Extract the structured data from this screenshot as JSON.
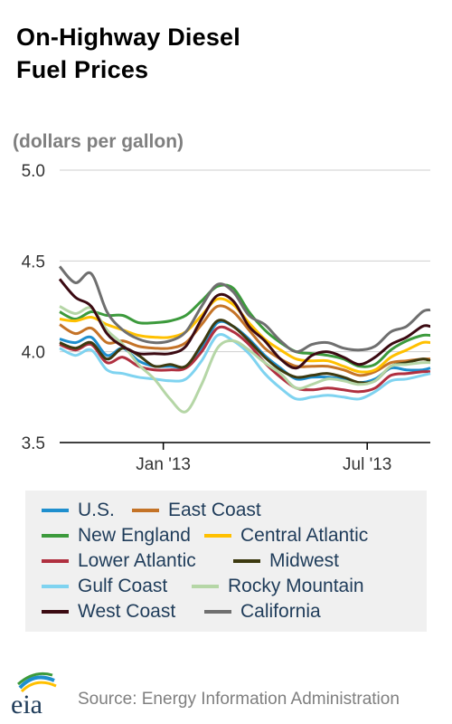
{
  "title_lines": [
    "On-Highway Diesel",
    "Fuel Prices"
  ],
  "source": "Source: Energy Information Administration",
  "logo_text": "eia",
  "chart_data": {
    "type": "line",
    "title": "On-Highway Diesel Fuel Prices",
    "ylabel": "(dollars per gallon)",
    "xlabel": "",
    "ylim": [
      3.5,
      5.0
    ],
    "yticks": [
      3.5,
      4.0,
      4.5,
      5.0
    ],
    "ytick_labels": [
      "3.5",
      "4.0",
      "4.5",
      "5.0"
    ],
    "xlim": [
      "2012-10-01",
      "2013-08-26"
    ],
    "xticks": [
      {
        "date": "2013-01-01",
        "label": "Jan '13"
      },
      {
        "date": "2013-07-01",
        "label": "Jul '13"
      }
    ],
    "grid": "horizontal",
    "legend_position": "bottom",
    "series": [
      {
        "name": "U.S.",
        "color": "#1f8fce",
        "points": [
          [
            "2012-10-01",
            4.07
          ],
          [
            "2012-10-15",
            4.05
          ],
          [
            "2012-10-29",
            4.08
          ],
          [
            "2012-11-12",
            3.98
          ],
          [
            "2012-11-26",
            4.02
          ],
          [
            "2012-12-10",
            3.95
          ],
          [
            "2012-12-24",
            3.92
          ],
          [
            "2013-01-07",
            3.92
          ],
          [
            "2013-01-21",
            3.92
          ],
          [
            "2013-02-04",
            4.02
          ],
          [
            "2013-02-18",
            4.16
          ],
          [
            "2013-03-04",
            4.14
          ],
          [
            "2013-03-18",
            4.07
          ],
          [
            "2013-04-01",
            3.98
          ],
          [
            "2013-04-15",
            3.91
          ],
          [
            "2013-04-29",
            3.85
          ],
          [
            "2013-05-13",
            3.86
          ],
          [
            "2013-05-27",
            3.86
          ],
          [
            "2013-06-10",
            3.85
          ],
          [
            "2013-06-24",
            3.83
          ],
          [
            "2013-07-08",
            3.85
          ],
          [
            "2013-07-22",
            3.91
          ],
          [
            "2013-08-05",
            3.9
          ],
          [
            "2013-08-19",
            3.9
          ],
          [
            "2013-08-26",
            3.91
          ]
        ]
      },
      {
        "name": "East Coast",
        "color": "#c47327",
        "points": [
          [
            "2012-10-01",
            4.15
          ],
          [
            "2012-10-15",
            4.1
          ],
          [
            "2012-10-29",
            4.13
          ],
          [
            "2012-11-12",
            4.05
          ],
          [
            "2012-11-26",
            4.06
          ],
          [
            "2012-12-10",
            4.03
          ],
          [
            "2012-12-24",
            4.02
          ],
          [
            "2013-01-07",
            4.02
          ],
          [
            "2013-01-21",
            4.05
          ],
          [
            "2013-02-04",
            4.15
          ],
          [
            "2013-02-18",
            4.25
          ],
          [
            "2013-03-04",
            4.22
          ],
          [
            "2013-03-18",
            4.12
          ],
          [
            "2013-04-01",
            4.02
          ],
          [
            "2013-04-15",
            3.96
          ],
          [
            "2013-04-29",
            3.92
          ],
          [
            "2013-05-13",
            3.92
          ],
          [
            "2013-05-27",
            3.92
          ],
          [
            "2013-06-10",
            3.9
          ],
          [
            "2013-06-24",
            3.87
          ],
          [
            "2013-07-08",
            3.89
          ],
          [
            "2013-07-22",
            3.94
          ],
          [
            "2013-08-05",
            3.95
          ],
          [
            "2013-08-19",
            3.96
          ],
          [
            "2013-08-26",
            3.96
          ]
        ]
      },
      {
        "name": "New England",
        "color": "#3c9a3c",
        "points": [
          [
            "2012-10-01",
            4.22
          ],
          [
            "2012-10-15",
            4.18
          ],
          [
            "2012-10-29",
            4.22
          ],
          [
            "2012-11-12",
            4.2
          ],
          [
            "2012-11-26",
            4.2
          ],
          [
            "2012-12-10",
            4.16
          ],
          [
            "2012-12-24",
            4.16
          ],
          [
            "2013-01-07",
            4.17
          ],
          [
            "2013-01-21",
            4.2
          ],
          [
            "2013-02-04",
            4.28
          ],
          [
            "2013-02-18",
            4.36
          ],
          [
            "2013-03-04",
            4.35
          ],
          [
            "2013-03-18",
            4.22
          ],
          [
            "2013-04-01",
            4.12
          ],
          [
            "2013-04-15",
            4.05
          ],
          [
            "2013-04-29",
            4.0
          ],
          [
            "2013-05-13",
            3.99
          ],
          [
            "2013-05-27",
            3.98
          ],
          [
            "2013-06-10",
            3.96
          ],
          [
            "2013-06-24",
            3.92
          ],
          [
            "2013-07-08",
            3.93
          ],
          [
            "2013-07-22",
            4.01
          ],
          [
            "2013-08-05",
            4.06
          ],
          [
            "2013-08-19",
            4.09
          ],
          [
            "2013-08-26",
            4.09
          ]
        ]
      },
      {
        "name": "Central Atlantic",
        "color": "#ffc000",
        "points": [
          [
            "2012-10-01",
            4.18
          ],
          [
            "2012-10-15",
            4.17
          ],
          [
            "2012-10-29",
            4.19
          ],
          [
            "2012-11-12",
            4.15
          ],
          [
            "2012-11-26",
            4.12
          ],
          [
            "2012-12-10",
            4.09
          ],
          [
            "2012-12-24",
            4.08
          ],
          [
            "2013-01-07",
            4.08
          ],
          [
            "2013-01-21",
            4.11
          ],
          [
            "2013-02-04",
            4.2
          ],
          [
            "2013-02-18",
            4.29
          ],
          [
            "2013-03-04",
            4.26
          ],
          [
            "2013-03-18",
            4.16
          ],
          [
            "2013-04-01",
            4.07
          ],
          [
            "2013-04-15",
            4.01
          ],
          [
            "2013-04-29",
            3.96
          ],
          [
            "2013-05-13",
            3.95
          ],
          [
            "2013-05-27",
            3.95
          ],
          [
            "2013-06-10",
            3.92
          ],
          [
            "2013-06-24",
            3.89
          ],
          [
            "2013-07-08",
            3.9
          ],
          [
            "2013-07-22",
            3.97
          ],
          [
            "2013-08-05",
            4.01
          ],
          [
            "2013-08-19",
            4.05
          ],
          [
            "2013-08-26",
            4.05
          ]
        ]
      },
      {
        "name": "Lower Atlantic",
        "color": "#b03040",
        "points": [
          [
            "2012-10-01",
            4.04
          ],
          [
            "2012-10-15",
            4.01
          ],
          [
            "2012-10-29",
            4.04
          ],
          [
            "2012-11-12",
            3.94
          ],
          [
            "2012-11-26",
            3.97
          ],
          [
            "2012-12-10",
            3.92
          ],
          [
            "2012-12-24",
            3.9
          ],
          [
            "2013-01-07",
            3.9
          ],
          [
            "2013-01-21",
            3.91
          ],
          [
            "2013-02-04",
            4.0
          ],
          [
            "2013-02-18",
            4.13
          ],
          [
            "2013-03-04",
            4.11
          ],
          [
            "2013-03-18",
            4.04
          ],
          [
            "2013-04-01",
            3.94
          ],
          [
            "2013-04-15",
            3.86
          ],
          [
            "2013-04-29",
            3.8
          ],
          [
            "2013-05-13",
            3.79
          ],
          [
            "2013-05-27",
            3.8
          ],
          [
            "2013-06-10",
            3.79
          ],
          [
            "2013-06-24",
            3.78
          ],
          [
            "2013-07-08",
            3.8
          ],
          [
            "2013-07-22",
            3.87
          ],
          [
            "2013-08-05",
            3.88
          ],
          [
            "2013-08-19",
            3.89
          ],
          [
            "2013-08-26",
            3.89
          ]
        ]
      },
      {
        "name": "Midwest",
        "color": "#3d3a10",
        "points": [
          [
            "2012-10-01",
            4.05
          ],
          [
            "2012-10-15",
            4.02
          ],
          [
            "2012-10-29",
            4.05
          ],
          [
            "2012-11-12",
            3.96
          ],
          [
            "2012-11-26",
            4.02
          ],
          [
            "2012-12-10",
            3.98
          ],
          [
            "2012-12-24",
            3.92
          ],
          [
            "2013-01-07",
            3.93
          ],
          [
            "2013-01-21",
            3.92
          ],
          [
            "2013-02-04",
            4.04
          ],
          [
            "2013-02-18",
            4.17
          ],
          [
            "2013-03-04",
            4.14
          ],
          [
            "2013-03-18",
            4.06
          ],
          [
            "2013-04-01",
            3.97
          ],
          [
            "2013-04-15",
            3.9
          ],
          [
            "2013-04-29",
            3.86
          ],
          [
            "2013-05-13",
            3.87
          ],
          [
            "2013-05-27",
            3.88
          ],
          [
            "2013-06-10",
            3.86
          ],
          [
            "2013-06-24",
            3.83
          ],
          [
            "2013-07-08",
            3.84
          ],
          [
            "2013-07-22",
            3.92
          ],
          [
            "2013-08-05",
            3.94
          ],
          [
            "2013-08-19",
            3.96
          ],
          [
            "2013-08-26",
            3.95
          ]
        ]
      },
      {
        "name": "Gulf Coast",
        "color": "#7fd3f0",
        "points": [
          [
            "2012-10-01",
            4.02
          ],
          [
            "2012-10-15",
            3.98
          ],
          [
            "2012-10-29",
            4.01
          ],
          [
            "2012-11-12",
            3.9
          ],
          [
            "2012-11-26",
            3.88
          ],
          [
            "2012-12-10",
            3.86
          ],
          [
            "2012-12-24",
            3.85
          ],
          [
            "2013-01-07",
            3.84
          ],
          [
            "2013-01-21",
            3.85
          ],
          [
            "2013-02-04",
            3.95
          ],
          [
            "2013-02-18",
            4.09
          ],
          [
            "2013-03-04",
            4.06
          ],
          [
            "2013-03-18",
            3.99
          ],
          [
            "2013-04-01",
            3.88
          ],
          [
            "2013-04-15",
            3.8
          ],
          [
            "2013-04-29",
            3.74
          ],
          [
            "2013-05-13",
            3.75
          ],
          [
            "2013-05-27",
            3.76
          ],
          [
            "2013-06-10",
            3.75
          ],
          [
            "2013-06-24",
            3.74
          ],
          [
            "2013-07-08",
            3.78
          ],
          [
            "2013-07-22",
            3.84
          ],
          [
            "2013-08-05",
            3.85
          ],
          [
            "2013-08-19",
            3.87
          ],
          [
            "2013-08-26",
            3.88
          ]
        ]
      },
      {
        "name": "Rocky Mountain",
        "color": "#b5d6a6",
        "points": [
          [
            "2012-10-01",
            4.25
          ],
          [
            "2012-10-15",
            4.21
          ],
          [
            "2012-10-29",
            4.24
          ],
          [
            "2012-11-12",
            4.12
          ],
          [
            "2012-11-26",
            4.04
          ],
          [
            "2012-12-10",
            3.93
          ],
          [
            "2012-12-24",
            3.85
          ],
          [
            "2013-01-07",
            3.74
          ],
          [
            "2013-01-21",
            3.67
          ],
          [
            "2013-02-04",
            3.82
          ],
          [
            "2013-02-18",
            4.02
          ],
          [
            "2013-03-04",
            4.06
          ],
          [
            "2013-03-18",
            4.01
          ],
          [
            "2013-04-01",
            3.94
          ],
          [
            "2013-04-15",
            3.88
          ],
          [
            "2013-04-29",
            3.8
          ],
          [
            "2013-05-13",
            3.82
          ],
          [
            "2013-05-27",
            3.85
          ],
          [
            "2013-06-10",
            3.84
          ],
          [
            "2013-06-24",
            3.82
          ],
          [
            "2013-07-08",
            3.84
          ],
          [
            "2013-07-22",
            3.92
          ],
          [
            "2013-08-05",
            3.93
          ],
          [
            "2013-08-19",
            3.94
          ],
          [
            "2013-08-26",
            3.94
          ]
        ]
      },
      {
        "name": "West Coast",
        "color": "#3b0a12",
        "points": [
          [
            "2012-10-01",
            4.4
          ],
          [
            "2012-10-15",
            4.3
          ],
          [
            "2012-10-29",
            4.25
          ],
          [
            "2012-11-12",
            4.1
          ],
          [
            "2012-11-26",
            4.03
          ],
          [
            "2012-12-10",
            3.99
          ],
          [
            "2012-12-24",
            3.99
          ],
          [
            "2013-01-07",
            3.99
          ],
          [
            "2013-01-21",
            4.03
          ],
          [
            "2013-02-04",
            4.18
          ],
          [
            "2013-02-18",
            4.31
          ],
          [
            "2013-03-04",
            4.28
          ],
          [
            "2013-03-18",
            4.14
          ],
          [
            "2013-04-01",
            4.06
          ],
          [
            "2013-04-15",
            3.96
          ],
          [
            "2013-04-29",
            3.91
          ],
          [
            "2013-05-13",
            3.98
          ],
          [
            "2013-05-27",
            4.0
          ],
          [
            "2013-06-10",
            3.97
          ],
          [
            "2013-06-24",
            3.93
          ],
          [
            "2013-07-08",
            3.97
          ],
          [
            "2013-07-22",
            4.04
          ],
          [
            "2013-08-05",
            4.08
          ],
          [
            "2013-08-19",
            4.14
          ],
          [
            "2013-08-26",
            4.14
          ]
        ]
      },
      {
        "name": "California",
        "color": "#6f6f6f",
        "points": [
          [
            "2012-10-01",
            4.47
          ],
          [
            "2012-10-15",
            4.38
          ],
          [
            "2012-10-29",
            4.43
          ],
          [
            "2012-11-12",
            4.22
          ],
          [
            "2012-11-26",
            4.12
          ],
          [
            "2012-12-10",
            4.07
          ],
          [
            "2012-12-24",
            4.05
          ],
          [
            "2013-01-07",
            4.06
          ],
          [
            "2013-01-21",
            4.11
          ],
          [
            "2013-02-04",
            4.25
          ],
          [
            "2013-02-18",
            4.37
          ],
          [
            "2013-03-04",
            4.33
          ],
          [
            "2013-03-18",
            4.2
          ],
          [
            "2013-04-01",
            4.15
          ],
          [
            "2013-04-15",
            4.06
          ],
          [
            "2013-04-29",
            4.0
          ],
          [
            "2013-05-13",
            4.04
          ],
          [
            "2013-05-27",
            4.05
          ],
          [
            "2013-06-10",
            4.02
          ],
          [
            "2013-06-24",
            4.01
          ],
          [
            "2013-07-08",
            4.03
          ],
          [
            "2013-07-22",
            4.11
          ],
          [
            "2013-08-05",
            4.14
          ],
          [
            "2013-08-19",
            4.22
          ],
          [
            "2013-08-26",
            4.23
          ]
        ]
      }
    ]
  }
}
